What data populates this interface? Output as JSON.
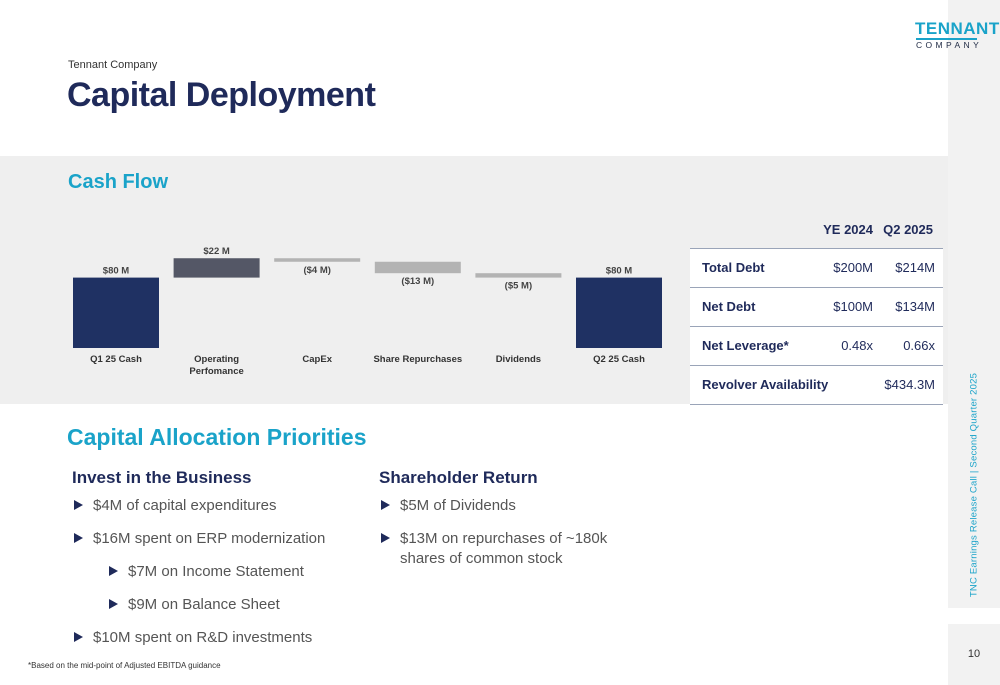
{
  "header": {
    "company": "Tennant Company",
    "title": "Capital Deployment"
  },
  "logo": {
    "word": "TENNANT",
    "sub": "COMPANY"
  },
  "side": {
    "text": "TNC Earnings Release Call | Second Quarter 2025",
    "page_number": "10"
  },
  "cash_flow": {
    "title": "Cash Flow"
  },
  "chart_data": {
    "type": "bar",
    "subtype": "waterfall",
    "categories": [
      "Q1 25 Cash",
      "Operating Perfomance",
      "CapEx",
      "Share Repurchases",
      "Dividends",
      "Q2 25 Cash"
    ],
    "category_lines": [
      [
        "Q1 25 Cash"
      ],
      [
        "Operating",
        "Perfomance"
      ],
      [
        "CapEx"
      ],
      [
        "Share Repurchases"
      ],
      [
        "Dividends"
      ],
      [
        "Q2 25 Cash"
      ]
    ],
    "values": [
      80,
      22,
      -4,
      -13,
      -5,
      80
    ],
    "kinds": [
      "total",
      "increase",
      "decrease",
      "decrease",
      "decrease",
      "total"
    ],
    "labels": [
      "$80 M",
      "$22 M",
      "($4 M)",
      "($13 M)",
      "($5 M)",
      "$80 M"
    ],
    "colors": {
      "total": "#1f3163",
      "increase": "#545766",
      "decrease": "#b3b3b3"
    },
    "grid": false
  },
  "debt_table": {
    "headers": [
      "YE 2024",
      "Q2 2025"
    ],
    "rows": [
      {
        "label": "Total Debt",
        "ye2024": "$200M",
        "q22025": "$214M"
      },
      {
        "label": "Net Debt",
        "ye2024": "$100M",
        "q22025": "$134M"
      },
      {
        "label": "Net Leverage*",
        "ye2024": "0.48x",
        "q22025": "0.66x"
      },
      {
        "label": "Revolver Availability",
        "ye2024": "",
        "q22025": "$434.3M"
      }
    ]
  },
  "priorities": {
    "title": "Capital Allocation Priorities",
    "invest": {
      "heading": "Invest in the Business",
      "items": [
        "$4M of capital expenditures",
        "$16M spent on ERP modernization",
        "$7M on Income Statement",
        "$9M on Balance Sheet",
        "$10M spent on R&D investments"
      ]
    },
    "shareholder": {
      "heading": "Shareholder Return",
      "items": [
        "$5M of Dividends",
        "$13M on repurchases of ~180k shares of common stock"
      ]
    }
  },
  "footnote": "*Based on the mid-point of Adjusted EBITDA guidance",
  "colors": {
    "navy": "#1f2a5a",
    "accent": "#1aa3c9",
    "band": "#efefef"
  }
}
